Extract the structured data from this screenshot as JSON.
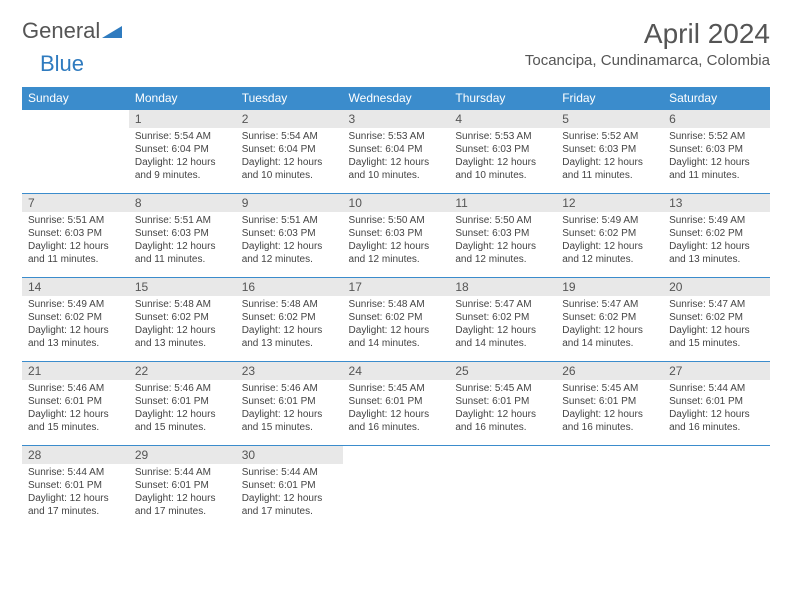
{
  "brand": {
    "word1": "General",
    "word2": "Blue"
  },
  "title": "April 2024",
  "location": "Tocancipa, Cundinamarca, Colombia",
  "colors": {
    "header_bg": "#3b8ccc",
    "header_fg": "#ffffff",
    "daynum_bg": "#e8e8e8",
    "rule": "#3b8ccc",
    "text": "#444444",
    "brand_blue": "#2f7bbf"
  },
  "weekdays": [
    "Sunday",
    "Monday",
    "Tuesday",
    "Wednesday",
    "Thursday",
    "Friday",
    "Saturday"
  ],
  "weeks": [
    [
      {
        "n": "",
        "sr": "",
        "ss": "",
        "dl": ""
      },
      {
        "n": "1",
        "sr": "Sunrise: 5:54 AM",
        "ss": "Sunset: 6:04 PM",
        "dl": "Daylight: 12 hours and 9 minutes."
      },
      {
        "n": "2",
        "sr": "Sunrise: 5:54 AM",
        "ss": "Sunset: 6:04 PM",
        "dl": "Daylight: 12 hours and 10 minutes."
      },
      {
        "n": "3",
        "sr": "Sunrise: 5:53 AM",
        "ss": "Sunset: 6:04 PM",
        "dl": "Daylight: 12 hours and 10 minutes."
      },
      {
        "n": "4",
        "sr": "Sunrise: 5:53 AM",
        "ss": "Sunset: 6:03 PM",
        "dl": "Daylight: 12 hours and 10 minutes."
      },
      {
        "n": "5",
        "sr": "Sunrise: 5:52 AM",
        "ss": "Sunset: 6:03 PM",
        "dl": "Daylight: 12 hours and 11 minutes."
      },
      {
        "n": "6",
        "sr": "Sunrise: 5:52 AM",
        "ss": "Sunset: 6:03 PM",
        "dl": "Daylight: 12 hours and 11 minutes."
      }
    ],
    [
      {
        "n": "7",
        "sr": "Sunrise: 5:51 AM",
        "ss": "Sunset: 6:03 PM",
        "dl": "Daylight: 12 hours and 11 minutes."
      },
      {
        "n": "8",
        "sr": "Sunrise: 5:51 AM",
        "ss": "Sunset: 6:03 PM",
        "dl": "Daylight: 12 hours and 11 minutes."
      },
      {
        "n": "9",
        "sr": "Sunrise: 5:51 AM",
        "ss": "Sunset: 6:03 PM",
        "dl": "Daylight: 12 hours and 12 minutes."
      },
      {
        "n": "10",
        "sr": "Sunrise: 5:50 AM",
        "ss": "Sunset: 6:03 PM",
        "dl": "Daylight: 12 hours and 12 minutes."
      },
      {
        "n": "11",
        "sr": "Sunrise: 5:50 AM",
        "ss": "Sunset: 6:03 PM",
        "dl": "Daylight: 12 hours and 12 minutes."
      },
      {
        "n": "12",
        "sr": "Sunrise: 5:49 AM",
        "ss": "Sunset: 6:02 PM",
        "dl": "Daylight: 12 hours and 12 minutes."
      },
      {
        "n": "13",
        "sr": "Sunrise: 5:49 AM",
        "ss": "Sunset: 6:02 PM",
        "dl": "Daylight: 12 hours and 13 minutes."
      }
    ],
    [
      {
        "n": "14",
        "sr": "Sunrise: 5:49 AM",
        "ss": "Sunset: 6:02 PM",
        "dl": "Daylight: 12 hours and 13 minutes."
      },
      {
        "n": "15",
        "sr": "Sunrise: 5:48 AM",
        "ss": "Sunset: 6:02 PM",
        "dl": "Daylight: 12 hours and 13 minutes."
      },
      {
        "n": "16",
        "sr": "Sunrise: 5:48 AM",
        "ss": "Sunset: 6:02 PM",
        "dl": "Daylight: 12 hours and 13 minutes."
      },
      {
        "n": "17",
        "sr": "Sunrise: 5:48 AM",
        "ss": "Sunset: 6:02 PM",
        "dl": "Daylight: 12 hours and 14 minutes."
      },
      {
        "n": "18",
        "sr": "Sunrise: 5:47 AM",
        "ss": "Sunset: 6:02 PM",
        "dl": "Daylight: 12 hours and 14 minutes."
      },
      {
        "n": "19",
        "sr": "Sunrise: 5:47 AM",
        "ss": "Sunset: 6:02 PM",
        "dl": "Daylight: 12 hours and 14 minutes."
      },
      {
        "n": "20",
        "sr": "Sunrise: 5:47 AM",
        "ss": "Sunset: 6:02 PM",
        "dl": "Daylight: 12 hours and 15 minutes."
      }
    ],
    [
      {
        "n": "21",
        "sr": "Sunrise: 5:46 AM",
        "ss": "Sunset: 6:01 PM",
        "dl": "Daylight: 12 hours and 15 minutes."
      },
      {
        "n": "22",
        "sr": "Sunrise: 5:46 AM",
        "ss": "Sunset: 6:01 PM",
        "dl": "Daylight: 12 hours and 15 minutes."
      },
      {
        "n": "23",
        "sr": "Sunrise: 5:46 AM",
        "ss": "Sunset: 6:01 PM",
        "dl": "Daylight: 12 hours and 15 minutes."
      },
      {
        "n": "24",
        "sr": "Sunrise: 5:45 AM",
        "ss": "Sunset: 6:01 PM",
        "dl": "Daylight: 12 hours and 16 minutes."
      },
      {
        "n": "25",
        "sr": "Sunrise: 5:45 AM",
        "ss": "Sunset: 6:01 PM",
        "dl": "Daylight: 12 hours and 16 minutes."
      },
      {
        "n": "26",
        "sr": "Sunrise: 5:45 AM",
        "ss": "Sunset: 6:01 PM",
        "dl": "Daylight: 12 hours and 16 minutes."
      },
      {
        "n": "27",
        "sr": "Sunrise: 5:44 AM",
        "ss": "Sunset: 6:01 PM",
        "dl": "Daylight: 12 hours and 16 minutes."
      }
    ],
    [
      {
        "n": "28",
        "sr": "Sunrise: 5:44 AM",
        "ss": "Sunset: 6:01 PM",
        "dl": "Daylight: 12 hours and 17 minutes."
      },
      {
        "n": "29",
        "sr": "Sunrise: 5:44 AM",
        "ss": "Sunset: 6:01 PM",
        "dl": "Daylight: 12 hours and 17 minutes."
      },
      {
        "n": "30",
        "sr": "Sunrise: 5:44 AM",
        "ss": "Sunset: 6:01 PM",
        "dl": "Daylight: 12 hours and 17 minutes."
      },
      {
        "n": "",
        "sr": "",
        "ss": "",
        "dl": ""
      },
      {
        "n": "",
        "sr": "",
        "ss": "",
        "dl": ""
      },
      {
        "n": "",
        "sr": "",
        "ss": "",
        "dl": ""
      },
      {
        "n": "",
        "sr": "",
        "ss": "",
        "dl": ""
      }
    ]
  ]
}
